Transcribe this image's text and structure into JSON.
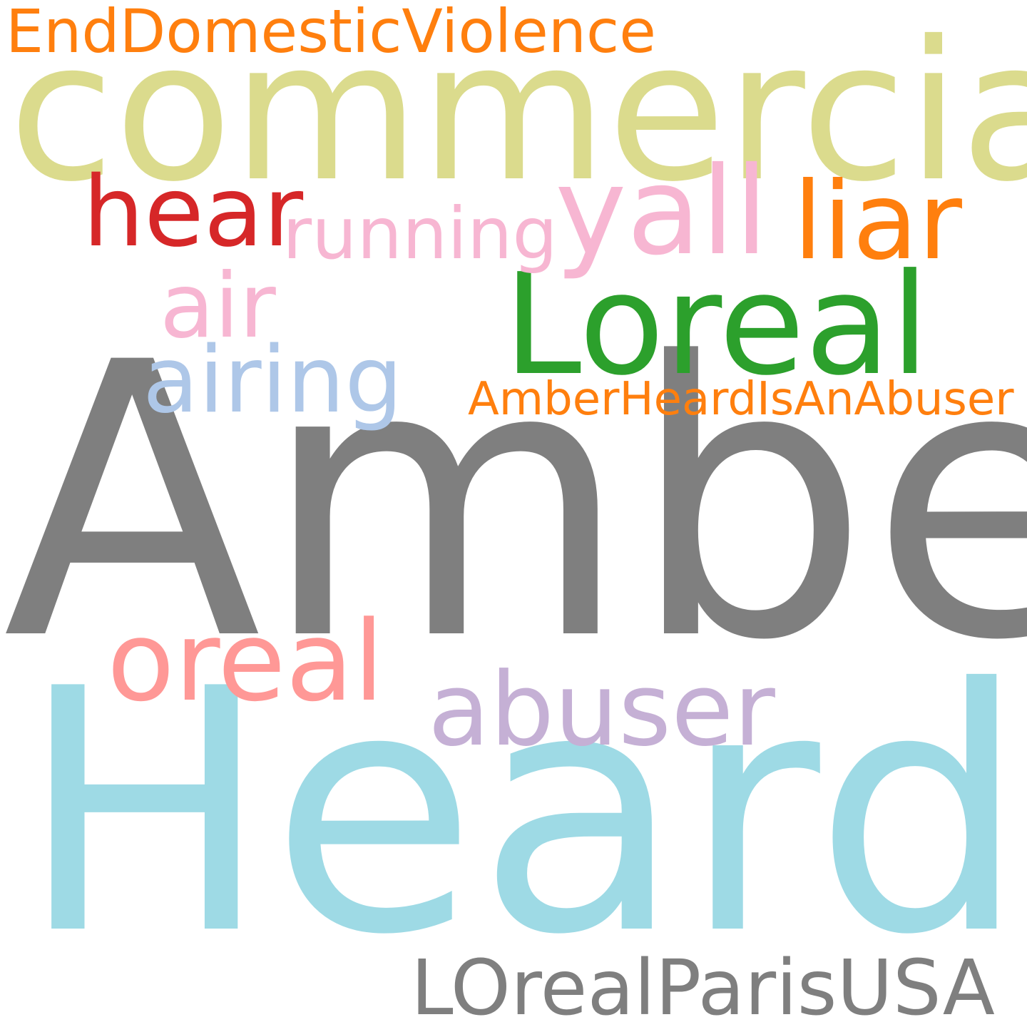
{
  "words": [
    {
      "text": "Heard",
      "color": "#9edae5"
    },
    {
      "text": "Amber",
      "color": "#7f7f7f"
    },
    {
      "text": "commercial",
      "color": "#dbdb8d"
    },
    {
      "text": "Loreal",
      "color": "#2ca02c"
    },
    {
      "text": "abuser",
      "color": "#c5b0d5"
    },
    {
      "text": "LOrealParisUSA",
      "color": "#7f7f7f"
    },
    {
      "text": "oreal",
      "color": "#ff9896"
    },
    {
      "text": "yall",
      "color": "#f7b6d2"
    },
    {
      "text": "hear",
      "color": "#d62728"
    },
    {
      "text": "liar",
      "color": "#ff7f0e"
    },
    {
      "text": "air",
      "color": "#f7b6d2"
    },
    {
      "text": "airing",
      "color": "#aec7e8"
    },
    {
      "text": "running",
      "color": "#f7b6d2"
    },
    {
      "text": "EndDomesticViolence",
      "color": "#ff7f0e"
    },
    {
      "text": "AmberHeardIsAnAbuser",
      "color": "#ff7f0e"
    }
  ]
}
